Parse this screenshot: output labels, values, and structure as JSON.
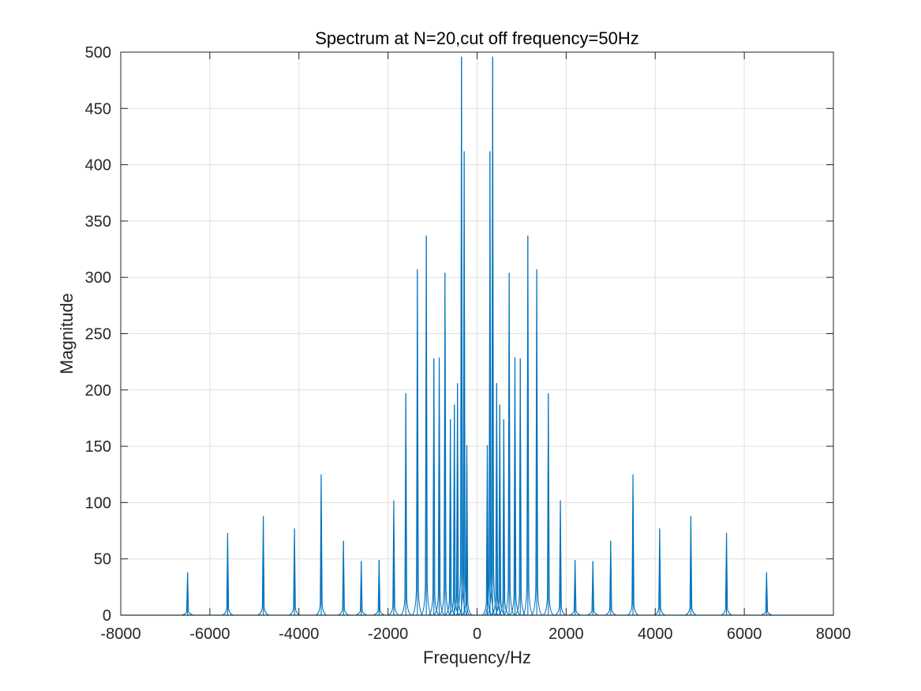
{
  "chart_data": {
    "type": "line",
    "title": "Spectrum at N=20,cut off frequency=50Hz",
    "xlabel": "Frequency/Hz",
    "ylabel": "Magnitude",
    "xlim": [
      -8000,
      8000
    ],
    "ylim": [
      0,
      500
    ],
    "xticks": [
      -8000,
      -6000,
      -4000,
      -2000,
      0,
      2000,
      4000,
      6000,
      8000
    ],
    "yticks": [
      0,
      50,
      100,
      150,
      200,
      250,
      300,
      350,
      400,
      450,
      500
    ],
    "grid": true,
    "series_color": "#0072BD",
    "grid_color": "#DFDFDF",
    "peaks": [
      {
        "f": -6500,
        "y": 38
      },
      {
        "f": -5600,
        "y": 73
      },
      {
        "f": -4800,
        "y": 88
      },
      {
        "f": -4100,
        "y": 77
      },
      {
        "f": -3500,
        "y": 125
      },
      {
        "f": -3000,
        "y": 66
      },
      {
        "f": -2600,
        "y": 48
      },
      {
        "f": -2200,
        "y": 49
      },
      {
        "f": -1870,
        "y": 102
      },
      {
        "f": -1600,
        "y": 197
      },
      {
        "f": -1340,
        "y": 307
      },
      {
        "f": -1140,
        "y": 337
      },
      {
        "f": -970,
        "y": 228
      },
      {
        "f": -850,
        "y": 229
      },
      {
        "f": -720,
        "y": 304
      },
      {
        "f": -600,
        "y": 174
      },
      {
        "f": -510,
        "y": 187
      },
      {
        "f": -440,
        "y": 206
      },
      {
        "f": -350,
        "y": 496
      },
      {
        "f": -290,
        "y": 412
      },
      {
        "f": -230,
        "y": 151
      },
      {
        "f": 230,
        "y": 151
      },
      {
        "f": 290,
        "y": 412
      },
      {
        "f": 350,
        "y": 496
      },
      {
        "f": 440,
        "y": 206
      },
      {
        "f": 510,
        "y": 187
      },
      {
        "f": 600,
        "y": 174
      },
      {
        "f": 720,
        "y": 304
      },
      {
        "f": 850,
        "y": 229
      },
      {
        "f": 970,
        "y": 228
      },
      {
        "f": 1140,
        "y": 337
      },
      {
        "f": 1340,
        "y": 307
      },
      {
        "f": 1600,
        "y": 197
      },
      {
        "f": 1870,
        "y": 102
      },
      {
        "f": 2200,
        "y": 49
      },
      {
        "f": 2600,
        "y": 48
      },
      {
        "f": 3000,
        "y": 66
      },
      {
        "f": 3500,
        "y": 125
      },
      {
        "f": 4100,
        "y": 77
      },
      {
        "f": 4800,
        "y": 88
      },
      {
        "f": 5600,
        "y": 73
      },
      {
        "f": 6500,
        "y": 38
      }
    ]
  }
}
